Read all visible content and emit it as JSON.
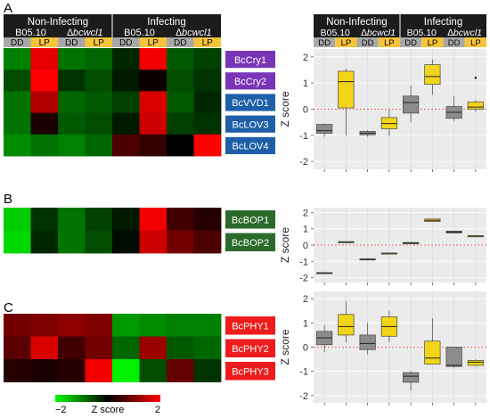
{
  "panel_labels": [
    "A",
    "B",
    "C"
  ],
  "conditions": {
    "groups": [
      "Non-Infecting",
      "Infecting"
    ],
    "strains": [
      "B05.10",
      "∆bcwcl1"
    ],
    "light": [
      "DD",
      "LP"
    ],
    "columns": [
      "Non-Infecting B05.10 DD",
      "Non-Infecting B05.10 LP",
      "Non-Infecting ∆bcwcl1 DD",
      "Non-Infecting ∆bcwcl1 LP",
      "Infecting B05.10 DD",
      "Infecting B05.10 LP",
      "Infecting ∆bcwcl1 DD",
      "Infecting ∆bcwcl1 LP"
    ]
  },
  "colors": {
    "header_bg": "#1c1c1c",
    "dd_bg": "#a8a8a8",
    "lp_bg": "#f5c43a",
    "cry_label": "#7a34b8",
    "lov_label": "#1f5fa8",
    "bop_label": "#2a6a2a",
    "phy_label": "#ee1c1c",
    "box_dd": "#8c8c8c",
    "box_lp": "#f2d419",
    "plot_bg": "#ebebeb",
    "zero_line": "#e86a5a"
  },
  "legend": {
    "min_label": "−2",
    "max_label": "2",
    "title": "Z score"
  },
  "chart_data": [
    {
      "type": "heatmap",
      "panel": "A",
      "genes": [
        "BcCry1",
        "BcCry2",
        "BcVVD1",
        "BcLOV3",
        "BcLOV4"
      ],
      "gene_label_colors": [
        "#7a34b8",
        "#7a34b8",
        "#1f5fa8",
        "#1f5fa8",
        "#1f5fa8"
      ],
      "values": [
        [
          -1.0,
          1.8,
          -0.9,
          -0.8,
          -0.3,
          1.9,
          -0.7,
          -0.5
        ],
        [
          -0.6,
          2.0,
          -0.4,
          -0.6,
          -0.2,
          0.1,
          -0.6,
          -0.4
        ],
        [
          -0.9,
          1.4,
          -0.8,
          -0.7,
          -0.5,
          1.7,
          -0.7,
          -0.3
        ],
        [
          -0.9,
          0.2,
          -0.7,
          -0.6,
          -0.2,
          1.6,
          -0.5,
          -0.4
        ],
        [
          -1.1,
          -0.9,
          -1.0,
          -0.8,
          0.6,
          0.4,
          0.0,
          2.0
        ]
      ]
    },
    {
      "type": "heatmap",
      "panel": "B",
      "genes": [
        "BcBOP1",
        "BcBOP2"
      ],
      "gene_label_colors": [
        "#2a6a2a",
        "#2a6a2a"
      ],
      "values": [
        [
          -1.6,
          -0.4,
          -0.9,
          -0.5,
          -0.2,
          1.9,
          0.5,
          0.3
        ],
        [
          -1.7,
          -0.3,
          -0.9,
          -0.6,
          -0.1,
          1.6,
          0.9,
          0.6
        ]
      ]
    },
    {
      "type": "heatmap",
      "panel": "C",
      "genes": [
        "BcPHY1",
        "BcPHY2",
        "BcPHY3"
      ],
      "gene_label_colors": [
        "#ee1c1c",
        "#ee1c1c",
        "#ee1c1c"
      ],
      "values": [
        [
          0.9,
          1.0,
          1.1,
          1.0,
          -1.2,
          -1.1,
          -1.0,
          -1.0
        ],
        [
          0.7,
          1.7,
          0.5,
          0.9,
          -0.8,
          1.2,
          -0.7,
          -0.8
        ],
        [
          0.3,
          0.2,
          0.3,
          1.9,
          -1.9,
          -0.6,
          0.8,
          -0.4
        ]
      ]
    },
    {
      "type": "box",
      "panel": "A",
      "ylabel": "Z score",
      "ylim": [
        -2.3,
        2.3
      ],
      "yticks": [
        -2,
        -1,
        0,
        1,
        2
      ],
      "boxes": [
        {
          "q1": -0.92,
          "median": -0.82,
          "q3": -0.58,
          "low": -1.05,
          "high": -0.55,
          "outliers": []
        },
        {
          "q1": 0.05,
          "median": 1.05,
          "q3": 1.45,
          "low": -1.0,
          "high": 1.55,
          "outliers": []
        },
        {
          "q1": -0.98,
          "median": -0.92,
          "q3": -0.85,
          "low": -1.05,
          "high": -0.8,
          "outliers": []
        },
        {
          "q1": -0.75,
          "median": -0.55,
          "q3": -0.32,
          "low": -1.02,
          "high": 0.0,
          "outliers": []
        },
        {
          "q1": -0.15,
          "median": 0.25,
          "q3": 0.5,
          "low": -0.5,
          "high": 0.9,
          "outliers": []
        },
        {
          "q1": 0.95,
          "median": 1.25,
          "q3": 1.7,
          "low": 0.55,
          "high": 1.9,
          "outliers": []
        },
        {
          "q1": -0.35,
          "median": -0.12,
          "q3": 0.1,
          "low": -0.45,
          "high": 0.5,
          "outliers": []
        },
        {
          "q1": 0.0,
          "median": 0.08,
          "q3": 0.28,
          "low": -0.1,
          "high": 0.35,
          "outliers": [
            1.2
          ]
        }
      ]
    },
    {
      "type": "box",
      "panel": "B",
      "ylabel": "Z score",
      "ylim": [
        -2.3,
        2.3
      ],
      "yticks": [
        -2,
        -1,
        0,
        1,
        2
      ],
      "boxes": [
        {
          "q1": -1.73,
          "median": -1.71,
          "q3": -1.69,
          "low": -1.73,
          "high": -1.69,
          "outliers": []
        },
        {
          "q1": 0.19,
          "median": 0.2,
          "q3": 0.21,
          "low": 0.19,
          "high": 0.21,
          "outliers": []
        },
        {
          "q1": -0.87,
          "median": -0.86,
          "q3": -0.85,
          "low": -0.87,
          "high": -0.85,
          "outliers": []
        },
        {
          "q1": -0.51,
          "median": -0.5,
          "q3": -0.49,
          "low": -0.51,
          "high": -0.49,
          "outliers": []
        },
        {
          "q1": 0.08,
          "median": 0.12,
          "q3": 0.16,
          "low": 0.08,
          "high": 0.16,
          "outliers": []
        },
        {
          "q1": 1.45,
          "median": 1.52,
          "q3": 1.6,
          "low": 1.45,
          "high": 1.6,
          "outliers": []
        },
        {
          "q1": 0.75,
          "median": 0.8,
          "q3": 0.86,
          "low": 0.75,
          "high": 0.86,
          "outliers": []
        },
        {
          "q1": 0.55,
          "median": 0.56,
          "q3": 0.57,
          "low": 0.55,
          "high": 0.57,
          "outliers": []
        }
      ]
    },
    {
      "type": "box",
      "panel": "C",
      "ylabel": "Z score",
      "ylim": [
        -2.3,
        2.3
      ],
      "yticks": [
        -2,
        -1,
        0,
        1,
        2
      ],
      "boxes": [
        {
          "q1": 0.1,
          "median": 0.38,
          "q3": 0.65,
          "low": -0.2,
          "high": 0.9,
          "outliers": []
        },
        {
          "q1": 0.5,
          "median": 0.85,
          "q3": 1.35,
          "low": 0.2,
          "high": 1.9,
          "outliers": []
        },
        {
          "q1": -0.1,
          "median": 0.15,
          "q3": 0.5,
          "low": -0.3,
          "high": 1.0,
          "outliers": []
        },
        {
          "q1": 0.45,
          "median": 0.85,
          "q3": 1.25,
          "low": 0.2,
          "high": 1.5,
          "outliers": []
        },
        {
          "q1": -1.45,
          "median": -1.2,
          "q3": -1.05,
          "low": -1.8,
          "high": -1.0,
          "outliers": []
        },
        {
          "q1": -0.7,
          "median": -0.45,
          "q3": 0.25,
          "low": -0.7,
          "high": 1.2,
          "outliers": []
        },
        {
          "q1": -0.8,
          "median": -0.75,
          "q3": 0.0,
          "low": -0.85,
          "high": 0.0,
          "outliers": []
        },
        {
          "q1": -0.75,
          "median": -0.62,
          "q3": -0.55,
          "low": -0.8,
          "high": -0.5,
          "outliers": []
        }
      ]
    }
  ]
}
